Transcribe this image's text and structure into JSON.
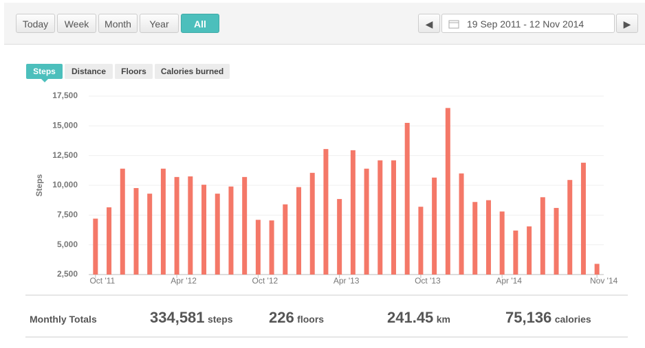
{
  "toolbar": {
    "ranges": [
      "Today",
      "Week",
      "Month",
      "Year",
      "All"
    ],
    "active": 4,
    "date_range": "19 Sep 2011 - 12 Nov 2014"
  },
  "tabs": {
    "items": [
      "Steps",
      "Distance",
      "Floors",
      "Calories burned"
    ],
    "active": 0
  },
  "chart_data": {
    "type": "bar",
    "y_label": "Steps",
    "color": "#f47868",
    "grid": true,
    "categories": [
      "Oct '11",
      null,
      null,
      null,
      null,
      null,
      "Apr '12",
      null,
      null,
      null,
      null,
      null,
      "Oct '12",
      null,
      null,
      null,
      null,
      null,
      "Apr '13",
      null,
      null,
      null,
      null,
      null,
      "Oct '13",
      null,
      null,
      null,
      null,
      null,
      "Apr '14",
      null,
      null,
      null,
      null,
      null,
      null,
      "Nov '14"
    ],
    "values": [
      7200,
      8150,
      11400,
      9770,
      9300,
      11400,
      10700,
      10750,
      10050,
      9300,
      9900,
      10700,
      7100,
      7050,
      8400,
      9850,
      11050,
      13050,
      8850,
      12950,
      11400,
      12100,
      12100,
      15250,
      8200,
      10650,
      16500,
      11000,
      8600,
      8750,
      7800,
      6200,
      6550,
      9000,
      8100,
      10450,
      11900,
      3400
    ],
    "ylim": [
      2500,
      17500
    ],
    "yticks": [
      {
        "value": 2500,
        "label": "2,500"
      },
      {
        "value": 5000,
        "label": "5,000"
      },
      {
        "value": 7500,
        "label": "7,500"
      },
      {
        "value": 10000,
        "label": "10,000"
      },
      {
        "value": 12500,
        "label": "12,500"
      },
      {
        "value": 15000,
        "label": "15,000"
      },
      {
        "value": 17500,
        "label": "17,500"
      }
    ]
  },
  "totals": {
    "title": "Monthly Totals",
    "items": [
      {
        "value": "334,581",
        "unit": "steps"
      },
      {
        "value": "226",
        "unit": "floors"
      },
      {
        "value": "241.45",
        "unit": "km"
      },
      {
        "value": "75,136",
        "unit": "calories"
      }
    ]
  }
}
